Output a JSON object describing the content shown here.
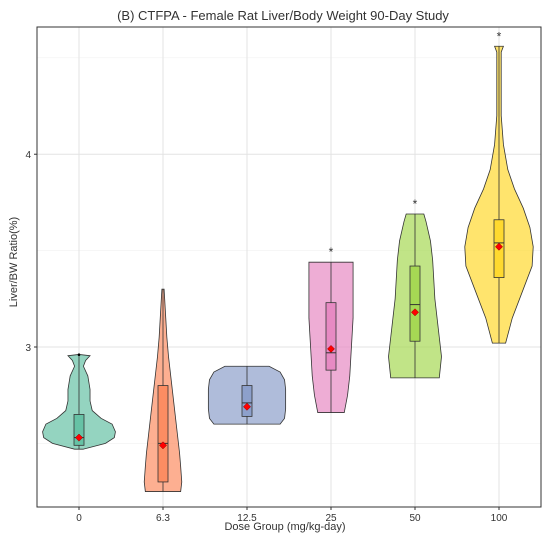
{
  "chart_data": {
    "type": "violin",
    "title": "(B) CTFPA - Female Rat Liver/Body Weight 90-Day Study",
    "xlabel": "Dose Group (mg/kg-day)",
    "ylabel": "Liver/BW Ratio(%)",
    "categories": [
      "0",
      "6.3",
      "12.5",
      "25",
      "50",
      "100"
    ],
    "y_ticks": [
      3,
      4
    ],
    "y_tick_labels": [
      "3",
      "4"
    ],
    "ylim": [
      2.17,
      4.66
    ],
    "grid": true,
    "legend": "none",
    "groups": [
      {
        "dose": "0",
        "color": "#66C2A5",
        "min": 2.47,
        "max": 2.96,
        "q1": 2.49,
        "median": 2.53,
        "q3": 2.65,
        "mean": 2.53,
        "significant": false,
        "density": [
          [
            2.47,
            0.04
          ],
          [
            2.5,
            0.24
          ],
          [
            2.53,
            0.32
          ],
          [
            2.56,
            0.33
          ],
          [
            2.6,
            0.3
          ],
          [
            2.63,
            0.2
          ],
          [
            2.67,
            0.12
          ],
          [
            2.72,
            0.1
          ],
          [
            2.78,
            0.1
          ],
          [
            2.85,
            0.08
          ],
          [
            2.9,
            0.04
          ],
          [
            2.93,
            0.06
          ],
          [
            2.955,
            0.1
          ],
          [
            2.96,
            0.02
          ]
        ],
        "outliers": [
          2.96
        ]
      },
      {
        "dose": "6.3",
        "color": "#FC8D62",
        "min": 2.25,
        "max": 3.3,
        "q1": 2.3,
        "median": 2.5,
        "q3": 2.8,
        "mean": 2.49,
        "significant": false,
        "density": [
          [
            2.25,
            0.16
          ],
          [
            2.3,
            0.17
          ],
          [
            2.38,
            0.16
          ],
          [
            2.45,
            0.15
          ],
          [
            2.55,
            0.13
          ],
          [
            2.65,
            0.11
          ],
          [
            2.75,
            0.09
          ],
          [
            2.85,
            0.07
          ],
          [
            2.95,
            0.05
          ],
          [
            3.05,
            0.035
          ],
          [
            3.15,
            0.025
          ],
          [
            3.25,
            0.015
          ],
          [
            3.3,
            0.01
          ]
        ],
        "outliers": []
      },
      {
        "dose": "12.5",
        "color": "#8DA0CB",
        "min": 2.6,
        "max": 2.9,
        "q1": 2.64,
        "median": 2.71,
        "q3": 2.8,
        "mean": 2.69,
        "significant": false,
        "density": [
          [
            2.6,
            0.3
          ],
          [
            2.63,
            0.34
          ],
          [
            2.68,
            0.35
          ],
          [
            2.73,
            0.35
          ],
          [
            2.78,
            0.35
          ],
          [
            2.83,
            0.34
          ],
          [
            2.87,
            0.3
          ],
          [
            2.9,
            0.2
          ]
        ],
        "outliers": []
      },
      {
        "dose": "25",
        "color": "#E78AC3",
        "min": 2.66,
        "max": 3.44,
        "q1": 2.88,
        "median": 2.97,
        "q3": 3.23,
        "mean": 2.99,
        "significant": true,
        "density": [
          [
            2.66,
            0.12
          ],
          [
            2.75,
            0.15
          ],
          [
            2.85,
            0.17
          ],
          [
            2.95,
            0.18
          ],
          [
            3.05,
            0.19
          ],
          [
            3.15,
            0.2
          ],
          [
            3.25,
            0.2
          ],
          [
            3.35,
            0.2
          ],
          [
            3.44,
            0.2
          ]
        ],
        "outliers": []
      },
      {
        "dose": "50",
        "color": "#A6D854",
        "min": 2.84,
        "max": 3.69,
        "q1": 3.03,
        "median": 3.22,
        "q3": 3.42,
        "mean": 3.18,
        "significant": true,
        "density": [
          [
            2.84,
            0.22
          ],
          [
            2.95,
            0.24
          ],
          [
            3.05,
            0.22
          ],
          [
            3.15,
            0.2
          ],
          [
            3.25,
            0.18
          ],
          [
            3.35,
            0.17
          ],
          [
            3.45,
            0.16
          ],
          [
            3.55,
            0.14
          ],
          [
            3.65,
            0.1
          ],
          [
            3.69,
            0.08
          ]
        ],
        "outliers": []
      },
      {
        "dose": "100",
        "color": "#FFD92F",
        "min": 3.02,
        "max": 4.56,
        "q1": 3.36,
        "median": 3.54,
        "q3": 3.66,
        "mean": 3.52,
        "significant": true,
        "density": [
          [
            3.02,
            0.06
          ],
          [
            3.15,
            0.12
          ],
          [
            3.3,
            0.22
          ],
          [
            3.42,
            0.3
          ],
          [
            3.52,
            0.31
          ],
          [
            3.62,
            0.28
          ],
          [
            3.72,
            0.22
          ],
          [
            3.82,
            0.14
          ],
          [
            3.92,
            0.08
          ],
          [
            4.05,
            0.04
          ],
          [
            4.2,
            0.02
          ],
          [
            4.35,
            0.02
          ],
          [
            4.45,
            0.02
          ],
          [
            4.53,
            0.02
          ],
          [
            4.56,
            0.04
          ]
        ],
        "outliers": []
      }
    ],
    "significance_marker": "*",
    "mean_marker_color": "#FF0000",
    "mean_marker_shape": "diamond"
  }
}
